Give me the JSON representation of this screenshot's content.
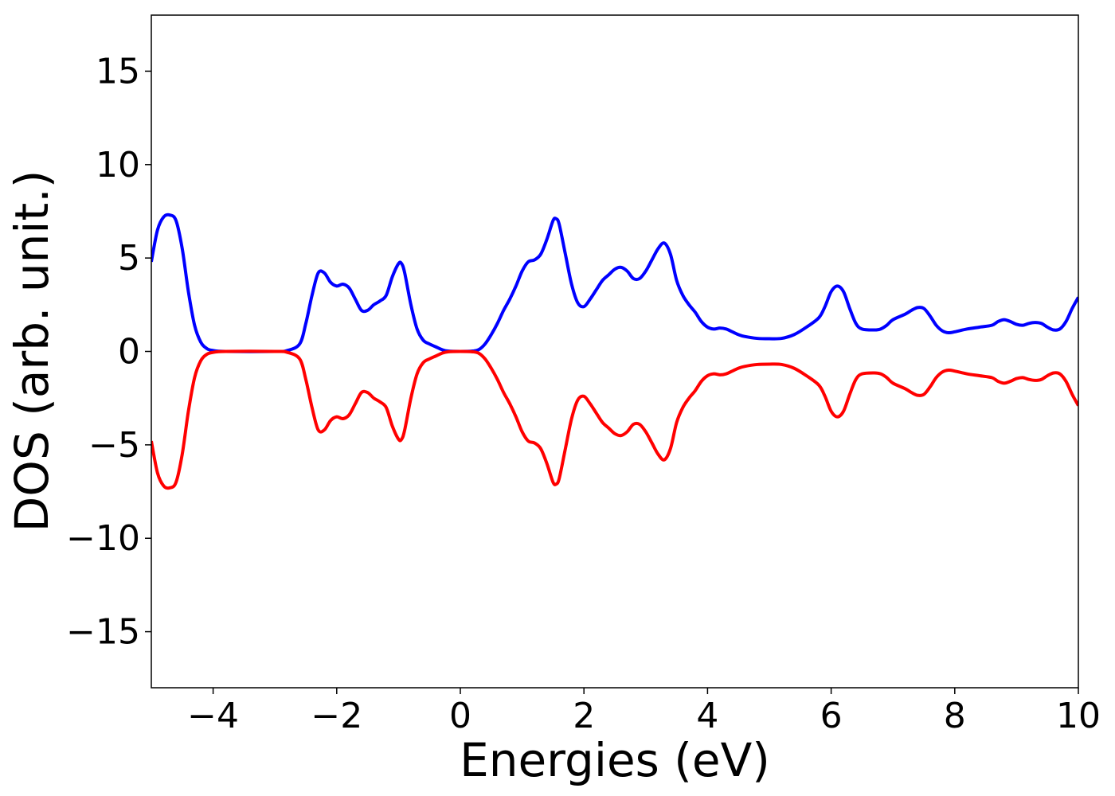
{
  "chart_data": {
    "type": "line",
    "title": "",
    "xlabel": "Energies (eV)",
    "ylabel": "DOS (arb. unit.)",
    "xlim": [
      -5,
      10
    ],
    "ylim": [
      -18,
      18
    ],
    "x_ticks": [
      -4,
      -2,
      0,
      2,
      4,
      6,
      8,
      10
    ],
    "y_ticks": [
      -15,
      -10,
      -5,
      0,
      5,
      10,
      15
    ],
    "x_tick_labels": [
      "−4",
      "−2",
      "0",
      "2",
      "4",
      "6",
      "8",
      "10"
    ],
    "y_tick_labels": [
      "−15",
      "−10",
      "−5",
      "0",
      "5",
      "10",
      "15"
    ],
    "grid": false,
    "legend": "none",
    "series": [
      {
        "color": "#0000ff",
        "points": [
          [
            -5.0,
            4.8
          ],
          [
            -4.9,
            6.5
          ],
          [
            -4.8,
            7.2
          ],
          [
            -4.7,
            7.3
          ],
          [
            -4.6,
            7.0
          ],
          [
            -4.5,
            5.5
          ],
          [
            -4.4,
            3.2
          ],
          [
            -4.3,
            1.4
          ],
          [
            -4.2,
            0.5
          ],
          [
            -4.1,
            0.15
          ],
          [
            -4.0,
            0.05
          ],
          [
            -3.8,
            0.0
          ],
          [
            -3.0,
            0.0
          ],
          [
            -2.8,
            0.05
          ],
          [
            -2.6,
            0.4
          ],
          [
            -2.5,
            1.5
          ],
          [
            -2.4,
            3.0
          ],
          [
            -2.3,
            4.2
          ],
          [
            -2.2,
            4.2
          ],
          [
            -2.1,
            3.7
          ],
          [
            -2.0,
            3.5
          ],
          [
            -1.9,
            3.6
          ],
          [
            -1.8,
            3.4
          ],
          [
            -1.7,
            2.8
          ],
          [
            -1.6,
            2.2
          ],
          [
            -1.5,
            2.2
          ],
          [
            -1.4,
            2.5
          ],
          [
            -1.3,
            2.7
          ],
          [
            -1.2,
            3.0
          ],
          [
            -1.1,
            4.0
          ],
          [
            -1.0,
            4.7
          ],
          [
            -0.95,
            4.7
          ],
          [
            -0.9,
            4.2
          ],
          [
            -0.8,
            2.5
          ],
          [
            -0.7,
            1.2
          ],
          [
            -0.6,
            0.6
          ],
          [
            -0.5,
            0.4
          ],
          [
            -0.4,
            0.25
          ],
          [
            -0.3,
            0.1
          ],
          [
            -0.2,
            0.02
          ],
          [
            0.0,
            0.0
          ],
          [
            0.2,
            0.02
          ],
          [
            0.3,
            0.1
          ],
          [
            0.4,
            0.4
          ],
          [
            0.5,
            0.9
          ],
          [
            0.6,
            1.5
          ],
          [
            0.7,
            2.2
          ],
          [
            0.8,
            2.8
          ],
          [
            0.9,
            3.5
          ],
          [
            1.0,
            4.3
          ],
          [
            1.1,
            4.8
          ],
          [
            1.2,
            4.9
          ],
          [
            1.3,
            5.2
          ],
          [
            1.4,
            6.0
          ],
          [
            1.5,
            7.0
          ],
          [
            1.55,
            7.1
          ],
          [
            1.6,
            6.8
          ],
          [
            1.7,
            5.2
          ],
          [
            1.8,
            3.6
          ],
          [
            1.9,
            2.6
          ],
          [
            2.0,
            2.4
          ],
          [
            2.1,
            2.8
          ],
          [
            2.2,
            3.3
          ],
          [
            2.3,
            3.8
          ],
          [
            2.4,
            4.1
          ],
          [
            2.5,
            4.4
          ],
          [
            2.6,
            4.5
          ],
          [
            2.7,
            4.3
          ],
          [
            2.8,
            3.9
          ],
          [
            2.9,
            3.9
          ],
          [
            3.0,
            4.3
          ],
          [
            3.1,
            4.9
          ],
          [
            3.2,
            5.5
          ],
          [
            3.3,
            5.8
          ],
          [
            3.4,
            5.2
          ],
          [
            3.5,
            3.8
          ],
          [
            3.6,
            3.0
          ],
          [
            3.7,
            2.5
          ],
          [
            3.8,
            2.1
          ],
          [
            3.9,
            1.6
          ],
          [
            4.0,
            1.3
          ],
          [
            4.1,
            1.2
          ],
          [
            4.2,
            1.25
          ],
          [
            4.3,
            1.2
          ],
          [
            4.4,
            1.05
          ],
          [
            4.5,
            0.9
          ],
          [
            4.6,
            0.8
          ],
          [
            4.8,
            0.7
          ],
          [
            5.0,
            0.68
          ],
          [
            5.2,
            0.7
          ],
          [
            5.4,
            0.9
          ],
          [
            5.6,
            1.3
          ],
          [
            5.8,
            1.8
          ],
          [
            5.9,
            2.4
          ],
          [
            6.0,
            3.2
          ],
          [
            6.1,
            3.5
          ],
          [
            6.2,
            3.2
          ],
          [
            6.3,
            2.3
          ],
          [
            6.4,
            1.5
          ],
          [
            6.5,
            1.2
          ],
          [
            6.7,
            1.15
          ],
          [
            6.8,
            1.2
          ],
          [
            6.9,
            1.4
          ],
          [
            7.0,
            1.7
          ],
          [
            7.2,
            2.0
          ],
          [
            7.3,
            2.2
          ],
          [
            7.4,
            2.35
          ],
          [
            7.5,
            2.3
          ],
          [
            7.6,
            1.9
          ],
          [
            7.7,
            1.4
          ],
          [
            7.8,
            1.1
          ],
          [
            7.9,
            1.0
          ],
          [
            8.0,
            1.05
          ],
          [
            8.2,
            1.2
          ],
          [
            8.4,
            1.3
          ],
          [
            8.6,
            1.4
          ],
          [
            8.7,
            1.6
          ],
          [
            8.8,
            1.7
          ],
          [
            8.9,
            1.6
          ],
          [
            9.0,
            1.45
          ],
          [
            9.1,
            1.4
          ],
          [
            9.2,
            1.5
          ],
          [
            9.3,
            1.55
          ],
          [
            9.4,
            1.5
          ],
          [
            9.5,
            1.3
          ],
          [
            9.6,
            1.15
          ],
          [
            9.7,
            1.2
          ],
          [
            9.8,
            1.6
          ],
          [
            9.9,
            2.3
          ],
          [
            10.0,
            2.9
          ]
        ]
      },
      {
        "color": "#ff0000",
        "points": [
          [
            -5.0,
            -4.8
          ],
          [
            -4.9,
            -6.5
          ],
          [
            -4.8,
            -7.2
          ],
          [
            -4.7,
            -7.3
          ],
          [
            -4.6,
            -7.0
          ],
          [
            -4.5,
            -5.5
          ],
          [
            -4.4,
            -3.2
          ],
          [
            -4.3,
            -1.4
          ],
          [
            -4.2,
            -0.5
          ],
          [
            -4.1,
            -0.15
          ],
          [
            -4.0,
            -0.05
          ],
          [
            -3.8,
            0.0
          ],
          [
            -3.0,
            0.0
          ],
          [
            -2.8,
            -0.05
          ],
          [
            -2.6,
            -0.4
          ],
          [
            -2.5,
            -1.5
          ],
          [
            -2.4,
            -3.0
          ],
          [
            -2.3,
            -4.2
          ],
          [
            -2.2,
            -4.2
          ],
          [
            -2.1,
            -3.7
          ],
          [
            -2.0,
            -3.5
          ],
          [
            -1.9,
            -3.6
          ],
          [
            -1.8,
            -3.4
          ],
          [
            -1.7,
            -2.8
          ],
          [
            -1.6,
            -2.2
          ],
          [
            -1.5,
            -2.2
          ],
          [
            -1.4,
            -2.5
          ],
          [
            -1.3,
            -2.7
          ],
          [
            -1.2,
            -3.0
          ],
          [
            -1.1,
            -4.0
          ],
          [
            -1.0,
            -4.7
          ],
          [
            -0.95,
            -4.7
          ],
          [
            -0.9,
            -4.2
          ],
          [
            -0.8,
            -2.5
          ],
          [
            -0.7,
            -1.2
          ],
          [
            -0.6,
            -0.6
          ],
          [
            -0.5,
            -0.4
          ],
          [
            -0.4,
            -0.25
          ],
          [
            -0.3,
            -0.1
          ],
          [
            -0.2,
            -0.02
          ],
          [
            0.0,
            0.0
          ],
          [
            0.2,
            -0.02
          ],
          [
            0.3,
            -0.1
          ],
          [
            0.4,
            -0.4
          ],
          [
            0.5,
            -0.9
          ],
          [
            0.6,
            -1.5
          ],
          [
            0.7,
            -2.2
          ],
          [
            0.8,
            -2.8
          ],
          [
            0.9,
            -3.5
          ],
          [
            1.0,
            -4.3
          ],
          [
            1.1,
            -4.8
          ],
          [
            1.2,
            -4.9
          ],
          [
            1.3,
            -5.2
          ],
          [
            1.4,
            -6.0
          ],
          [
            1.5,
            -7.0
          ],
          [
            1.55,
            -7.1
          ],
          [
            1.6,
            -6.8
          ],
          [
            1.7,
            -5.2
          ],
          [
            1.8,
            -3.6
          ],
          [
            1.9,
            -2.6
          ],
          [
            2.0,
            -2.4
          ],
          [
            2.1,
            -2.8
          ],
          [
            2.2,
            -3.3
          ],
          [
            2.3,
            -3.8
          ],
          [
            2.4,
            -4.1
          ],
          [
            2.5,
            -4.4
          ],
          [
            2.6,
            -4.5
          ],
          [
            2.7,
            -4.3
          ],
          [
            2.8,
            -3.9
          ],
          [
            2.9,
            -3.9
          ],
          [
            3.0,
            -4.3
          ],
          [
            3.1,
            -4.9
          ],
          [
            3.2,
            -5.5
          ],
          [
            3.3,
            -5.8
          ],
          [
            3.4,
            -5.2
          ],
          [
            3.5,
            -3.8
          ],
          [
            3.6,
            -3.0
          ],
          [
            3.7,
            -2.5
          ],
          [
            3.8,
            -2.1
          ],
          [
            3.9,
            -1.6
          ],
          [
            4.0,
            -1.3
          ],
          [
            4.1,
            -1.2
          ],
          [
            4.2,
            -1.25
          ],
          [
            4.3,
            -1.2
          ],
          [
            4.4,
            -1.05
          ],
          [
            4.5,
            -0.9
          ],
          [
            4.6,
            -0.8
          ],
          [
            4.8,
            -0.7
          ],
          [
            5.0,
            -0.68
          ],
          [
            5.2,
            -0.7
          ],
          [
            5.4,
            -0.9
          ],
          [
            5.6,
            -1.3
          ],
          [
            5.8,
            -1.8
          ],
          [
            5.9,
            -2.4
          ],
          [
            6.0,
            -3.2
          ],
          [
            6.1,
            -3.5
          ],
          [
            6.2,
            -3.2
          ],
          [
            6.3,
            -2.3
          ],
          [
            6.4,
            -1.5
          ],
          [
            6.5,
            -1.2
          ],
          [
            6.7,
            -1.15
          ],
          [
            6.8,
            -1.2
          ],
          [
            6.9,
            -1.4
          ],
          [
            7.0,
            -1.7
          ],
          [
            7.2,
            -2.0
          ],
          [
            7.3,
            -2.2
          ],
          [
            7.4,
            -2.35
          ],
          [
            7.5,
            -2.3
          ],
          [
            7.6,
            -1.9
          ],
          [
            7.7,
            -1.4
          ],
          [
            7.8,
            -1.1
          ],
          [
            7.9,
            -1.0
          ],
          [
            8.0,
            -1.05
          ],
          [
            8.2,
            -1.2
          ],
          [
            8.4,
            -1.3
          ],
          [
            8.6,
            -1.4
          ],
          [
            8.7,
            -1.6
          ],
          [
            8.8,
            -1.7
          ],
          [
            8.9,
            -1.6
          ],
          [
            9.0,
            -1.45
          ],
          [
            9.1,
            -1.4
          ],
          [
            9.2,
            -1.5
          ],
          [
            9.3,
            -1.55
          ],
          [
            9.4,
            -1.5
          ],
          [
            9.5,
            -1.3
          ],
          [
            9.6,
            -1.15
          ],
          [
            9.7,
            -1.2
          ],
          [
            9.8,
            -1.6
          ],
          [
            9.9,
            -2.3
          ],
          [
            10.0,
            -2.9
          ]
        ]
      }
    ]
  }
}
